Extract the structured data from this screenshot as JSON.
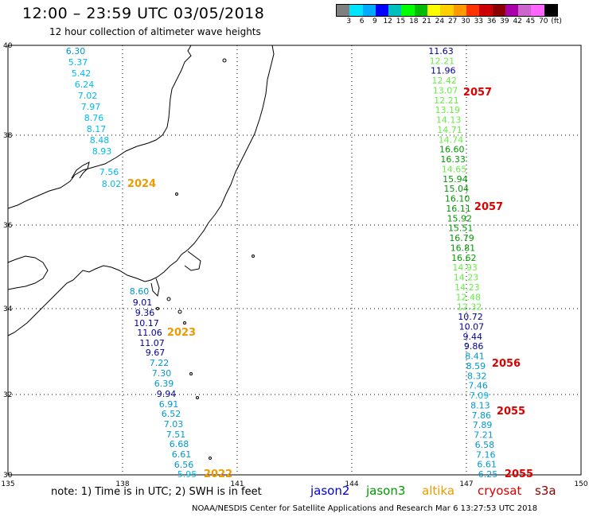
{
  "header": {
    "title": "12:00 – 23:59 UTC 03/05/2018",
    "subtitle": "12 hour collection of altimeter wave heights"
  },
  "colorbar": {
    "colors": [
      "#7f7f7f",
      "#00e5ff",
      "#00aaff",
      "#0000ff",
      "#00bfbf",
      "#00ff00",
      "#00bb00",
      "#ffff00",
      "#ffd000",
      "#ff9900",
      "#ff3300",
      "#cc0000",
      "#880000",
      "#aa00aa",
      "#cc66cc",
      "#ff66ff",
      "#000000"
    ],
    "labels": [
      "3",
      "6",
      "9",
      "12",
      "15",
      "18",
      "21",
      "24",
      "27",
      "30",
      "33",
      "36",
      "39",
      "42",
      "45",
      "70",
      "(ft)"
    ]
  },
  "axes": {
    "lat_ticks": [
      "40",
      "38",
      "36",
      "34",
      "32",
      "30"
    ],
    "lon_ticks": [
      "135",
      "138",
      "141",
      "144",
      "147",
      "150"
    ]
  },
  "tracks": {
    "left": [
      {
        "v": "6.30",
        "c": "#0099cc"
      },
      {
        "v": "5.37",
        "c": "#00bbee"
      },
      {
        "v": "5.42",
        "c": "#00bbee"
      },
      {
        "v": "6.24",
        "c": "#00bbee"
      },
      {
        "v": "7.02",
        "c": "#00bbee"
      },
      {
        "v": "7.97",
        "c": "#00bbee"
      },
      {
        "v": "8.76",
        "c": "#00bbee"
      },
      {
        "v": "8.17",
        "c": "#00bbee"
      },
      {
        "v": "8.48",
        "c": "#00bbee"
      },
      {
        "v": "8.93",
        "c": "#00bbee"
      },
      {
        "v": "7.56",
        "c": "#00bbee"
      },
      {
        "v": "8.02",
        "c": "#00bbee"
      },
      {
        "v": "8.60",
        "c": "#0099cc"
      },
      {
        "v": "9.01",
        "c": "#000099"
      },
      {
        "v": "9.36",
        "c": "#000099"
      },
      {
        "v": "10.17",
        "c": "#000099"
      },
      {
        "v": "11.06",
        "c": "#000099"
      },
      {
        "v": "11.07",
        "c": "#000099"
      },
      {
        "v": "9.67",
        "c": "#000099"
      },
      {
        "v": "7.22",
        "c": "#0099cc"
      },
      {
        "v": "7.30",
        "c": "#0099cc"
      },
      {
        "v": "6.39",
        "c": "#0099cc"
      },
      {
        "v": "9.94",
        "c": "#000099"
      },
      {
        "v": "6.91",
        "c": "#0099cc"
      },
      {
        "v": "6.52",
        "c": "#0099cc"
      },
      {
        "v": "7.03",
        "c": "#0099cc"
      },
      {
        "v": "7.51",
        "c": "#0099cc"
      },
      {
        "v": "6.68",
        "c": "#0099cc"
      },
      {
        "v": "6.61",
        "c": "#0099cc"
      },
      {
        "v": "6.56",
        "c": "#0099cc"
      },
      {
        "v": "5.95",
        "c": "#00bbee"
      }
    ],
    "right": [
      {
        "v": "11.63",
        "c": "#000099"
      },
      {
        "v": "12.21",
        "c": "#66ee44"
      },
      {
        "v": "11.96",
        "c": "#000099"
      },
      {
        "v": "12.42",
        "c": "#66ee44"
      },
      {
        "v": "13.07",
        "c": "#66ee44"
      },
      {
        "v": "12.21",
        "c": "#66ee44"
      },
      {
        "v": "13.19",
        "c": "#66ee44"
      },
      {
        "v": "14.13",
        "c": "#66ee44"
      },
      {
        "v": "14.71",
        "c": "#66ee44"
      },
      {
        "v": "14.74",
        "c": "#66ee44"
      },
      {
        "v": "16.60",
        "c": "#009900"
      },
      {
        "v": "16.33",
        "c": "#009900"
      },
      {
        "v": "14.65",
        "c": "#66ee44"
      },
      {
        "v": "15.94",
        "c": "#009900"
      },
      {
        "v": "15.04",
        "c": "#009900"
      },
      {
        "v": "16.10",
        "c": "#009900"
      },
      {
        "v": "16.11",
        "c": "#009900"
      },
      {
        "v": "15.92",
        "c": "#009900"
      },
      {
        "v": "15.51",
        "c": "#009900"
      },
      {
        "v": "16.79",
        "c": "#009900"
      },
      {
        "v": "16.81",
        "c": "#009900"
      },
      {
        "v": "16.62",
        "c": "#009900"
      },
      {
        "v": "14.93",
        "c": "#66ee44"
      },
      {
        "v": "14.23",
        "c": "#66ee44"
      },
      {
        "v": "14.23",
        "c": "#66ee44"
      },
      {
        "v": "12.48",
        "c": "#66ee44"
      },
      {
        "v": "12.32",
        "c": "#66ee44"
      },
      {
        "v": "10.72",
        "c": "#000099"
      },
      {
        "v": "10.07",
        "c": "#000099"
      },
      {
        "v": "9.44",
        "c": "#000099"
      },
      {
        "v": "9.86",
        "c": "#000099"
      },
      {
        "v": "8.41",
        "c": "#0099cc"
      },
      {
        "v": "8.59",
        "c": "#0099cc"
      },
      {
        "v": "8.32",
        "c": "#0099cc"
      },
      {
        "v": "7.46",
        "c": "#0099cc"
      },
      {
        "v": "7.09",
        "c": "#00bbee"
      },
      {
        "v": "8.13",
        "c": "#0099cc"
      },
      {
        "v": "7.86",
        "c": "#0099cc"
      },
      {
        "v": "7.89",
        "c": "#0099cc"
      },
      {
        "v": "7.21",
        "c": "#0099cc"
      },
      {
        "v": "6.58",
        "c": "#0099cc"
      },
      {
        "v": "7.16",
        "c": "#0099cc"
      },
      {
        "v": "6.61",
        "c": "#0099cc"
      },
      {
        "v": "6.25",
        "c": "#0099cc"
      }
    ]
  },
  "time_labels": [
    {
      "t": "2024",
      "c": "#ee9900"
    },
    {
      "t": "2023",
      "c": "#ee9900"
    },
    {
      "t": "2022",
      "c": "#ee9900"
    },
    {
      "t": "2057",
      "c": "#dd0000"
    },
    {
      "t": "2057",
      "c": "#dd0000"
    },
    {
      "t": "2056",
      "c": "#dd0000"
    },
    {
      "t": "2055",
      "c": "#dd0000"
    },
    {
      "t": "2055",
      "c": "#dd0000"
    }
  ],
  "note": "note:  1) Time is in UTC;  2) SWH is in feet",
  "satellites": [
    {
      "name": "jason2",
      "c": "#0000dd"
    },
    {
      "name": "jason3",
      "c": "#009900"
    },
    {
      "name": "altika",
      "c": "#ee9900"
    },
    {
      "name": "cryosat",
      "c": "#dd0000"
    },
    {
      "name": "s3a",
      "c": "#880000"
    }
  ],
  "footer": "NOAA/NESDIS Center for Satellite Applications and Research    Mar  6 13:27:53 UTC 2018"
}
